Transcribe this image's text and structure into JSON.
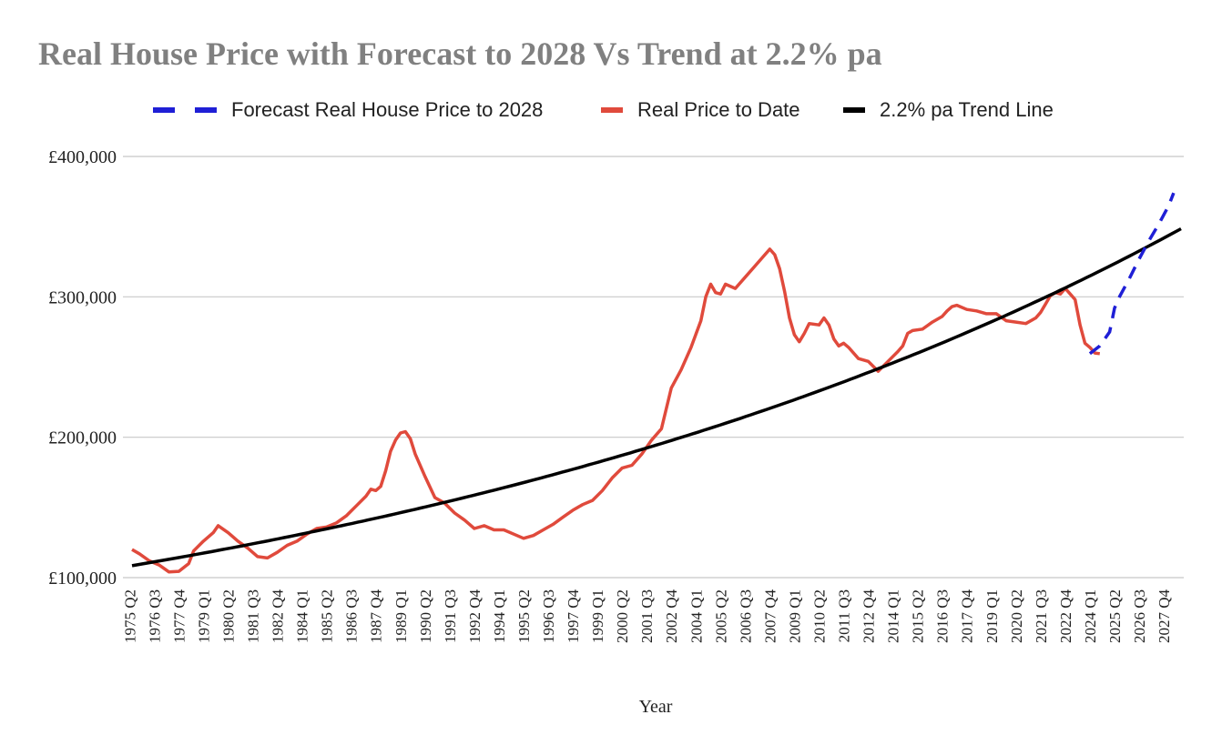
{
  "chart_data": {
    "type": "line",
    "title": "Real House Price with Forecast to 2028 Vs Trend at 2.2% pa",
    "xlabel": "Year",
    "ylabel": "",
    "ylim": [
      100000,
      400000
    ],
    "yticks": [
      "£100,000",
      "£200,000",
      "£300,000",
      "£400,000"
    ],
    "ytick_values": [
      100000,
      200000,
      300000,
      400000
    ],
    "grid": true,
    "legend_position": "top",
    "colors": {
      "forecast": "#1f1fd6",
      "real": "#e04a3c",
      "trend": "#000000",
      "grid": "#c8c8c8"
    },
    "x_tick_labels": [
      "1975 Q2",
      "1976 Q3",
      "1977 Q4",
      "1979 Q1",
      "1980 Q2",
      "1981 Q3",
      "1982 Q4",
      "1984 Q1",
      "1985 Q2",
      "1986 Q3",
      "1987 Q4",
      "1989 Q1",
      "1990 Q2",
      "1991 Q3",
      "1992 Q4",
      "1994 Q1",
      "1995 Q2",
      "1996 Q3",
      "1997 Q4",
      "1999 Q1",
      "2000 Q2",
      "2001 Q3",
      "2002 Q4",
      "2004 Q1",
      "2005 Q2",
      "2006 Q3",
      "2007 Q4",
      "2009 Q1",
      "2010 Q2",
      "2011 Q3",
      "2012 Q4",
      "2014 Q1",
      "2015 Q2",
      "2016 Q3",
      "2017 Q4",
      "2019 Q1",
      "2020 Q2",
      "2021 Q3",
      "2022 Q4",
      "2024 Q1",
      "2025 Q2",
      "2026 Q3",
      "2027 Q4"
    ],
    "x_range": [
      1975.375,
      2028.625
    ],
    "series": [
      {
        "name": "Forecast Real House Price to 2028",
        "style": "dashed",
        "color": "#1f1fd6",
        "points": [
          [
            2024.0,
            259500
          ],
          [
            2024.5,
            265000
          ],
          [
            2025.0,
            275000
          ],
          [
            2025.25,
            292000
          ],
          [
            2025.5,
            300000
          ],
          [
            2026.0,
            313000
          ],
          [
            2026.5,
            327000
          ],
          [
            2027.0,
            340000
          ],
          [
            2027.5,
            352000
          ],
          [
            2028.0,
            365000
          ],
          [
            2028.25,
            374000
          ]
        ]
      },
      {
        "name": "Real Price to Date",
        "style": "solid",
        "color": "#e04a3c",
        "points": [
          [
            1975.375,
            120000
          ],
          [
            1975.75,
            117000
          ],
          [
            1976.25,
            112000
          ],
          [
            1976.75,
            109000
          ],
          [
            1977.25,
            104000
          ],
          [
            1977.75,
            104500
          ],
          [
            1978.25,
            110000
          ],
          [
            1978.5,
            119000
          ],
          [
            1979.0,
            126000
          ],
          [
            1979.5,
            132000
          ],
          [
            1979.75,
            137000
          ],
          [
            1980.25,
            132000
          ],
          [
            1980.75,
            126000
          ],
          [
            1981.25,
            121000
          ],
          [
            1981.75,
            115000
          ],
          [
            1982.25,
            114000
          ],
          [
            1982.75,
            118000
          ],
          [
            1983.25,
            123000
          ],
          [
            1983.75,
            126000
          ],
          [
            1984.25,
            131000
          ],
          [
            1984.75,
            135000
          ],
          [
            1985.25,
            136000
          ],
          [
            1985.75,
            139000
          ],
          [
            1986.25,
            144000
          ],
          [
            1986.75,
            151000
          ],
          [
            1987.25,
            158000
          ],
          [
            1987.5,
            163000
          ],
          [
            1987.75,
            162000
          ],
          [
            1988.0,
            165000
          ],
          [
            1988.25,
            176000
          ],
          [
            1988.5,
            190000
          ],
          [
            1988.75,
            198000
          ],
          [
            1989.0,
            203000
          ],
          [
            1989.25,
            204000
          ],
          [
            1989.5,
            199000
          ],
          [
            1989.75,
            188000
          ],
          [
            1990.25,
            172000
          ],
          [
            1990.75,
            157000
          ],
          [
            1991.25,
            153000
          ],
          [
            1991.75,
            146000
          ],
          [
            1992.25,
            141000
          ],
          [
            1992.75,
            135000
          ],
          [
            1993.25,
            137000
          ],
          [
            1993.75,
            134000
          ],
          [
            1994.25,
            134000
          ],
          [
            1994.75,
            131000
          ],
          [
            1995.25,
            128000
          ],
          [
            1995.75,
            130000
          ],
          [
            1996.25,
            134000
          ],
          [
            1996.75,
            138000
          ],
          [
            1997.25,
            143000
          ],
          [
            1997.75,
            148000
          ],
          [
            1998.25,
            152000
          ],
          [
            1998.75,
            155000
          ],
          [
            1999.25,
            162000
          ],
          [
            1999.75,
            171000
          ],
          [
            2000.25,
            178000
          ],
          [
            2000.75,
            180000
          ],
          [
            2001.25,
            188000
          ],
          [
            2001.75,
            198000
          ],
          [
            2002.25,
            206000
          ],
          [
            2002.75,
            235000
          ],
          [
            2003.25,
            248000
          ],
          [
            2003.75,
            264000
          ],
          [
            2004.25,
            283000
          ],
          [
            2004.5,
            300000
          ],
          [
            2004.75,
            309000
          ],
          [
            2005.0,
            303000
          ],
          [
            2005.25,
            302000
          ],
          [
            2005.5,
            309000
          ],
          [
            2006.0,
            306000
          ],
          [
            2006.5,
            314000
          ],
          [
            2007.0,
            322000
          ],
          [
            2007.5,
            330000
          ],
          [
            2007.75,
            334000
          ],
          [
            2008.0,
            330000
          ],
          [
            2008.25,
            320000
          ],
          [
            2008.5,
            304000
          ],
          [
            2008.75,
            285000
          ],
          [
            2009.0,
            273000
          ],
          [
            2009.25,
            268000
          ],
          [
            2009.5,
            274000
          ],
          [
            2009.75,
            281000
          ],
          [
            2010.25,
            280000
          ],
          [
            2010.5,
            285000
          ],
          [
            2010.75,
            280000
          ],
          [
            2011.0,
            270000
          ],
          [
            2011.25,
            265000
          ],
          [
            2011.5,
            267000
          ],
          [
            2011.75,
            264000
          ],
          [
            2012.25,
            256000
          ],
          [
            2012.75,
            254000
          ],
          [
            2013.25,
            247000
          ],
          [
            2013.75,
            254000
          ],
          [
            2014.25,
            261000
          ],
          [
            2014.5,
            265000
          ],
          [
            2014.75,
            274000
          ],
          [
            2015.0,
            276000
          ],
          [
            2015.5,
            277000
          ],
          [
            2016.0,
            282000
          ],
          [
            2016.5,
            286000
          ],
          [
            2016.75,
            290000
          ],
          [
            2017.0,
            293000
          ],
          [
            2017.25,
            294000
          ],
          [
            2017.75,
            291000
          ],
          [
            2018.25,
            290000
          ],
          [
            2018.75,
            288000
          ],
          [
            2019.25,
            288000
          ],
          [
            2019.75,
            283000
          ],
          [
            2020.25,
            282000
          ],
          [
            2020.75,
            281000
          ],
          [
            2021.25,
            285000
          ],
          [
            2021.5,
            289000
          ],
          [
            2021.75,
            295000
          ],
          [
            2022.0,
            301000
          ],
          [
            2022.25,
            303000
          ],
          [
            2022.5,
            302000
          ],
          [
            2022.75,
            306000
          ],
          [
            2023.0,
            302000
          ],
          [
            2023.25,
            298000
          ],
          [
            2023.5,
            280000
          ],
          [
            2023.75,
            267000
          ],
          [
            2024.0,
            264000
          ],
          [
            2024.25,
            260000
          ],
          [
            2024.5,
            259500
          ]
        ]
      },
      {
        "name": "2.2% pa Trend Line",
        "style": "solid",
        "color": "#000000",
        "growth_rate": 0.022,
        "points": [
          [
            1975.375,
            108500
          ],
          [
            2028.625,
            348500
          ]
        ]
      }
    ]
  }
}
